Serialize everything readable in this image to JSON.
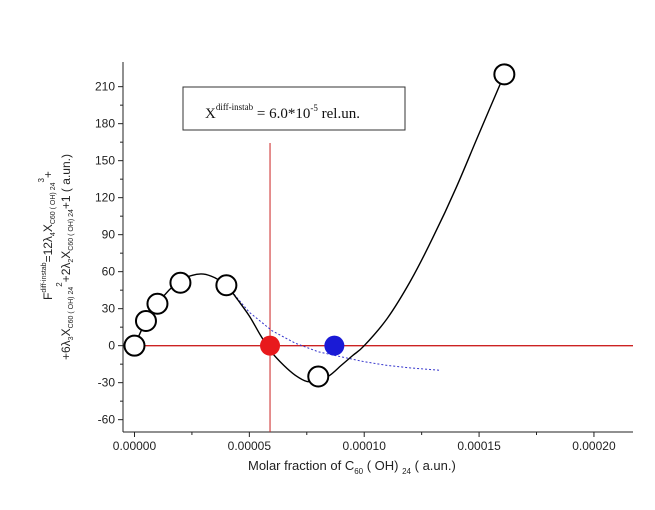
{
  "chart_data": {
    "type": "scatter",
    "xlabel": {
      "prefix": "Molar fraction of C",
      "sub": "60",
      "mid": " ( OH) ",
      "sub2": "24",
      "suffix": " ( a.un.)"
    },
    "ylabel_line1": {
      "a": "F",
      "a_sup": "diff-instab",
      "b": "=12λ",
      "b_sub": "4",
      "c": "X",
      "c_sub": "C60 ( OH) 24",
      "c_sup": "3",
      "d": "+"
    },
    "ylabel_line2": {
      "a": "+6λ",
      "a_sub": "3",
      "b": "X",
      "b_sub": "C60 ( OH) 24",
      "b_sup": "2",
      "c": "+2λ",
      "c_sub": "2",
      "d": "X",
      "d_sub": "C60 ( OH) 24",
      "e": "+1 ( a.un.)"
    },
    "annotation": {
      "base": "X",
      "sup": "diff-instab",
      "eq": " = 6.0*10",
      "exp": "-5",
      "unit": " rel.un."
    },
    "xlim": [
      -5e-06,
      0.000217
    ],
    "ylim": [
      -70,
      230
    ],
    "x_ticks": [
      0.0,
      5e-05,
      0.0001,
      0.00015,
      0.0002
    ],
    "x_tick_labels": [
      "0.00000",
      "0.00005",
      "0.00010",
      "0.00015",
      "0.00020"
    ],
    "y_ticks": [
      -60,
      -30,
      0,
      30,
      60,
      90,
      120,
      150,
      180,
      210
    ],
    "y_tick_labels": [
      "-60",
      "-30",
      "0",
      "30",
      "60",
      "90",
      "120",
      "150",
      "180",
      "210"
    ],
    "points": {
      "x": [
        0.0,
        5e-06,
        1e-05,
        2e-05,
        4e-05,
        8e-05,
        0.000161
      ],
      "y": [
        0,
        20,
        34,
        51,
        49,
        -25,
        220
      ]
    },
    "curve": {
      "x": [
        0.0,
        5e-06,
        1e-05,
        1.5e-05,
        2e-05,
        2.5e-05,
        3e-05,
        3.5e-05,
        4e-05,
        4.5e-05,
        5e-05,
        5.5e-05,
        6e-05,
        6.5e-05,
        7e-05,
        7.5e-05,
        8e-05,
        8.5e-05,
        9e-05,
        9.5e-05,
        0.0001,
        0.00011,
        0.00012,
        0.00013,
        0.00014,
        0.00015,
        0.000161
      ],
      "y": [
        0,
        20,
        34,
        45,
        53,
        57,
        58,
        55,
        49,
        37,
        24,
        8,
        -6,
        -16,
        -24,
        -29,
        -28,
        -24,
        -16,
        -8,
        0,
        22,
        52,
        88,
        128,
        172,
        220
      ]
    },
    "tangent_line": {
      "x": [
        4e-05,
        5e-05,
        6e-05,
        7e-05,
        8e-05,
        9e-05,
        0.0001,
        0.00011,
        0.00012,
        0.000133
      ],
      "y": [
        49,
        27,
        12,
        2,
        -5,
        -9,
        -13,
        -16,
        -18,
        -20
      ]
    },
    "horizontal_line_y": 0,
    "vertical_line_x": 5.9e-05,
    "red_marker": {
      "x": 5.9e-05,
      "y": 0
    },
    "blue_marker": {
      "x": 8.7e-05,
      "y": 0
    },
    "colors": {
      "curve": "#000000",
      "tangent": "#3333cc",
      "axis_line": "#cc2222",
      "red_marker": "#e8191c",
      "blue_marker": "#1a1ad6"
    }
  }
}
